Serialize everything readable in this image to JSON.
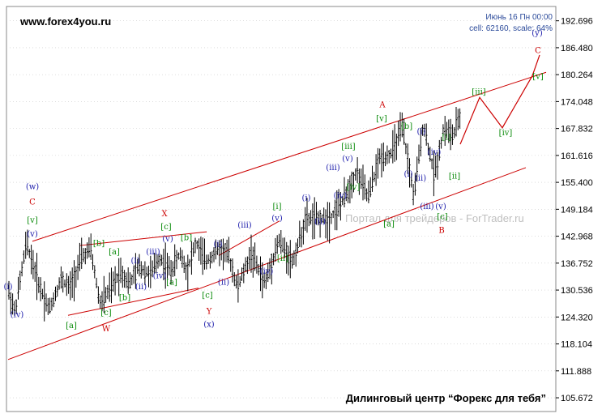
{
  "header": {
    "site": "www.forex4you.ru",
    "date_line": "Июнь 16 Пн 00:00",
    "scale_line": "cell: 62160, scale: 64%"
  },
  "watermark": "Портал для трейдеров - ForTrader.ru",
  "footer": "Дилинговый центр “Форекс для тебя”",
  "colors": {
    "candles": "#000000",
    "channel": "#cc0000",
    "projection": "#cc0000",
    "green_label": "#0a8a0a",
    "blue_label": "#1a1aaa",
    "red_label": "#cc0000",
    "grid": "#c8c8c8"
  },
  "chart_data": {
    "type": "candlestick",
    "ylim": [
      102.5,
      196.0
    ],
    "x_count": 200,
    "y_ticks": [
      "192.696",
      "186.480",
      "180.264",
      "174.048",
      "167.832",
      "161.616",
      "155.400",
      "149.184",
      "142.968",
      "136.752",
      "130.536",
      "124.320",
      "118.104",
      "111.888",
      "105.672"
    ],
    "y_tick_values": [
      192.696,
      186.48,
      180.264,
      174.048,
      167.832,
      161.616,
      155.4,
      149.184,
      142.968,
      136.752,
      130.536,
      124.32,
      118.104,
      111.888,
      105.672
    ],
    "path_anchors": [
      [
        0,
        130.5
      ],
      [
        3,
        125.5
      ],
      [
        8,
        141.5
      ],
      [
        14,
        131
      ],
      [
        18,
        126
      ],
      [
        23,
        133
      ],
      [
        27,
        131
      ],
      [
        32,
        138
      ],
      [
        36,
        140
      ],
      [
        40,
        127.5
      ],
      [
        45,
        131
      ],
      [
        49,
        135
      ],
      [
        53,
        132
      ],
      [
        57,
        136
      ],
      [
        62,
        134
      ],
      [
        66,
        138
      ],
      [
        71,
        135
      ],
      [
        75,
        139
      ],
      [
        78,
        135
      ],
      [
        82,
        141.5
      ],
      [
        86,
        137
      ],
      [
        92,
        140
      ],
      [
        96,
        139
      ],
      [
        100,
        131
      ],
      [
        106,
        139
      ],
      [
        112,
        132
      ],
      [
        118,
        142
      ],
      [
        124,
        137
      ],
      [
        130,
        147
      ],
      [
        136,
        147
      ],
      [
        140,
        147
      ],
      [
        146,
        151
      ],
      [
        152,
        158
      ],
      [
        157,
        152
      ],
      [
        162,
        161
      ],
      [
        167,
        162
      ],
      [
        172,
        168
      ],
      [
        177,
        152
      ],
      [
        181,
        169
      ],
      [
        186,
        157
      ],
      [
        190,
        168
      ],
      [
        194,
        166
      ],
      [
        198,
        172
      ]
    ],
    "channels": [
      {
        "name": "upper",
        "points": [
          [
            0,
            0
          ],
          [
            0,
            0
          ]
        ],
        "start": [
          40,
          141.8
        ],
        "end": [
          674,
          180.8
        ]
      },
      {
        "name": "lower",
        "start": [
          10,
          114.5
        ],
        "end": [
          649,
          158.8
        ]
      },
      {
        "name": "x-upper",
        "start": [
          98,
          140.8
        ],
        "end": [
          255,
          144.0
        ]
      },
      {
        "name": "x-lower",
        "start": [
          84,
          124.7
        ],
        "end": [
          245,
          131.0
        ]
      },
      {
        "name": "y-upper",
        "start": [
          270,
          138.5
        ],
        "end": [
          345,
          146.5
        ]
      }
    ],
    "projection": [
      [
        568,
        164.2
      ],
      [
        592,
        175.0
      ],
      [
        620,
        168.0
      ],
      [
        657,
        180.0
      ],
      [
        666,
        184.8
      ]
    ],
    "labels": [
      {
        "text": "(w)",
        "x": 40,
        "y": 154.6,
        "color": "blue"
      },
      {
        "text": "C",
        "x": 40,
        "y": 151.0,
        "color": "red",
        "big": true
      },
      {
        "text": "[v]",
        "x": 40,
        "y": 146.8,
        "color": "green"
      },
      {
        "text": "(v)",
        "x": 40,
        "y": 143.6,
        "color": "blue"
      },
      {
        "text": "(i)",
        "x": 10,
        "y": 131.5,
        "color": "blue"
      },
      {
        "text": "(iv)",
        "x": 21,
        "y": 125.0,
        "color": "blue"
      },
      {
        "text": "[a]",
        "x": 88,
        "y": 122.5,
        "color": "green"
      },
      {
        "text": "[b]",
        "x": 122,
        "y": 141.5,
        "color": "green"
      },
      {
        "text": "[c]",
        "x": 131,
        "y": 125.5,
        "color": "green"
      },
      {
        "text": "W",
        "x": 131,
        "y": 121.8,
        "color": "red",
        "big": true
      },
      {
        "text": "[a]",
        "x": 141,
        "y": 139.5,
        "color": "green"
      },
      {
        "text": "[b]",
        "x": 154,
        "y": 129.0,
        "color": "green"
      },
      {
        "text": "(i)",
        "x": 167,
        "y": 137.5,
        "color": "blue"
      },
      {
        "text": "(ii)",
        "x": 174,
        "y": 131.5,
        "color": "blue"
      },
      {
        "text": "(iii)",
        "x": 189,
        "y": 139.5,
        "color": "blue"
      },
      {
        "text": "(iv)",
        "x": 197,
        "y": 134.0,
        "color": "blue"
      },
      {
        "text": "(v)",
        "x": 207,
        "y": 142.5,
        "color": "blue"
      },
      {
        "text": "[c]",
        "x": 205,
        "y": 145.3,
        "color": "green"
      },
      {
        "text": "X",
        "x": 203,
        "y": 148.3,
        "color": "red",
        "big": true
      },
      {
        "text": "[a]",
        "x": 212,
        "y": 132.5,
        "color": "green"
      },
      {
        "text": "[b]",
        "x": 230,
        "y": 142.8,
        "color": "green"
      },
      {
        "text": "[c]",
        "x": 256,
        "y": 129.5,
        "color": "green"
      },
      {
        "text": "Y",
        "x": 258,
        "y": 125.8,
        "color": "red",
        "big": true
      },
      {
        "text": "(x)",
        "x": 258,
        "y": 122.8,
        "color": "blue"
      },
      {
        "text": "(i)",
        "x": 269,
        "y": 141.3,
        "color": "blue"
      },
      {
        "text": "(ii)",
        "x": 276,
        "y": 132.5,
        "color": "blue"
      },
      {
        "text": "(iii)",
        "x": 302,
        "y": 145.7,
        "color": "blue"
      },
      {
        "text": "(iv)",
        "x": 329,
        "y": 135.0,
        "color": "blue"
      },
      {
        "text": "(v)",
        "x": 342,
        "y": 147.3,
        "color": "blue"
      },
      {
        "text": "[i]",
        "x": 342,
        "y": 150.0,
        "color": "green"
      },
      {
        "text": "[ii]",
        "x": 349,
        "y": 138.0,
        "color": "green"
      },
      {
        "text": "(i)",
        "x": 378,
        "y": 152.0,
        "color": "blue"
      },
      {
        "text": "(ii)",
        "x": 395,
        "y": 146.5,
        "color": "blue"
      },
      {
        "text": "(iii)",
        "x": 411,
        "y": 159.0,
        "color": "blue"
      },
      {
        "text": "(iv)",
        "x": 420,
        "y": 152.5,
        "color": "blue"
      },
      {
        "text": "(v)",
        "x": 429,
        "y": 161.0,
        "color": "blue"
      },
      {
        "text": "[iii]",
        "x": 430,
        "y": 163.8,
        "color": "green"
      },
      {
        "text": "[iv]",
        "x": 436,
        "y": 154.5,
        "color": "green"
      },
      {
        "text": "[v]",
        "x": 471,
        "y": 170.3,
        "color": "green"
      },
      {
        "text": "A",
        "x": 472,
        "y": 173.5,
        "color": "red",
        "big": true
      },
      {
        "text": "[a]",
        "x": 480,
        "y": 146.0,
        "color": "green"
      },
      {
        "text": "[b]",
        "x": 502,
        "y": 168.5,
        "color": "green"
      },
      {
        "text": "(i)",
        "x": 520,
        "y": 167.3,
        "color": "blue"
      },
      {
        "text": "(i)",
        "x": 504,
        "y": 157.5,
        "color": "blue"
      },
      {
        "text": "(ii)",
        "x": 519,
        "y": 156.5,
        "color": "blue"
      },
      {
        "text": "(iv)",
        "x": 536,
        "y": 162.5,
        "color": "blue"
      },
      {
        "text": "[i]",
        "x": 551,
        "y": 166.0,
        "color": "green"
      },
      {
        "text": "[ii]",
        "x": 561,
        "y": 157.0,
        "color": "green"
      },
      {
        "text": "(iii)",
        "x": 527,
        "y": 150.0,
        "color": "blue"
      },
      {
        "text": "(v)",
        "x": 544,
        "y": 150.0,
        "color": "blue"
      },
      {
        "text": "[c]",
        "x": 546,
        "y": 147.7,
        "color": "green"
      },
      {
        "text": "B",
        "x": 545,
        "y": 144.5,
        "color": "red",
        "big": true
      },
      {
        "text": "[iii]",
        "x": 591,
        "y": 176.5,
        "color": "green"
      },
      {
        "text": "[iv]",
        "x": 624,
        "y": 167.0,
        "color": "green"
      },
      {
        "text": "[v]",
        "x": 664,
        "y": 180.0,
        "color": "green"
      },
      {
        "text": "C",
        "x": 664,
        "y": 186.0,
        "color": "red",
        "big": true
      },
      {
        "text": "(y)",
        "x": 663,
        "y": 190.0,
        "color": "blue"
      }
    ]
  }
}
